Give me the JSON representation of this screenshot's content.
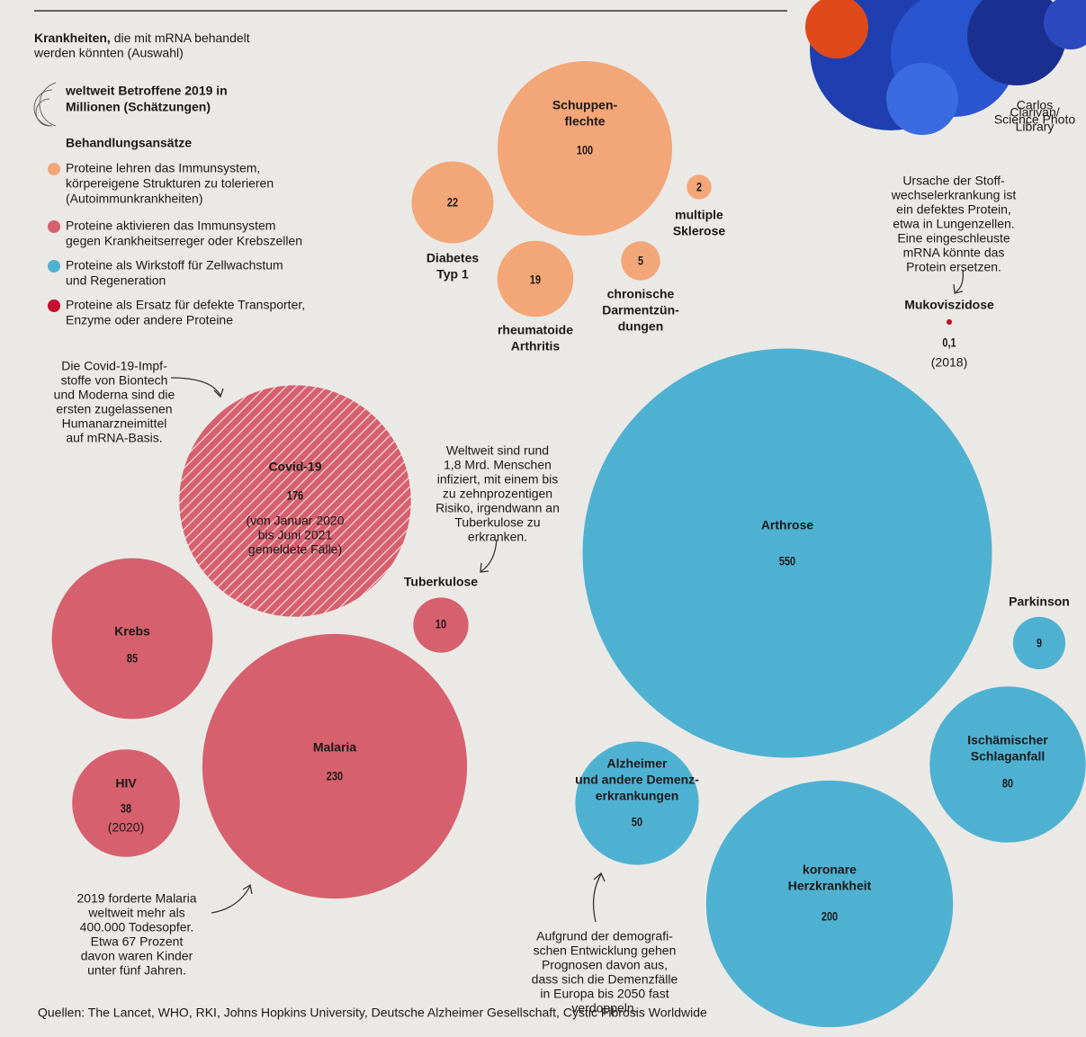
{
  "chart_data": {
    "type": "bubble",
    "title": "Krankheiten,",
    "subtitle": [
      "die mit mRNA behandelt",
      "werden könnten (Auswahl)"
    ],
    "size_legend": [
      "weltweit Betroffene 2019 in",
      "Millionen (Schätzungen)"
    ],
    "legend_title": "Behandlungsansätze",
    "series": [
      {
        "name": [
          "Proteine lehren das Immunsystem,",
          "körpereigene Strukturen zu tolerieren",
          "(Autoimmunkrankheiten)"
        ],
        "color": "#f3a678",
        "labels": [
          [
            "Schuppen-",
            "flechte"
          ],
          [
            "Diabetes",
            "Typ 1"
          ],
          [
            "multiple",
            "Sklerose"
          ],
          [
            "chronische",
            "Darmentzün-",
            "dungen"
          ],
          [
            "rheumatoide",
            "Arthritis"
          ]
        ],
        "values": [
          100,
          22,
          2,
          5,
          19
        ],
        "value_labels": [
          "100",
          "22",
          "2",
          "5",
          "19"
        ],
        "notes": [
          null,
          null,
          null,
          null,
          null
        ]
      },
      {
        "name": [
          "Proteine aktivieren das Immunsystem",
          "gegen Krankheitserreger oder Krebszellen"
        ],
        "color": "#d6606e",
        "labels": [
          [
            "Covid-19"
          ],
          [
            "Krebs"
          ],
          [
            "Malaria"
          ],
          [
            "HIV"
          ],
          [
            "Tuberkulose"
          ]
        ],
        "values": [
          176,
          85,
          230,
          38,
          10
        ],
        "value_labels": [
          "176",
          "85",
          "230",
          "38",
          "10"
        ],
        "notes": [
          [
            "(von Januar 2020",
            "bis Juni 2021",
            "gemeldete Fälle)"
          ],
          null,
          null,
          [
            "(2020)"
          ],
          null
        ]
      },
      {
        "name": [
          "Proteine als Wirkstoff für Zellwachstum",
          "und Regeneration"
        ],
        "color": "#4fb1d2",
        "labels": [
          [
            "Arthrose"
          ],
          [
            "Parkinson"
          ],
          [
            "Ischämischer",
            "Schlaganfall"
          ],
          [
            "Alzheimer",
            "und andere Demenz-",
            "erkrankungen"
          ],
          [
            "koronare",
            "Herzkrankheit"
          ]
        ],
        "values": [
          550,
          9,
          80,
          50,
          200
        ],
        "value_labels": [
          "550",
          "9",
          "80",
          "50",
          "200"
        ],
        "notes": [
          null,
          null,
          null,
          null,
          null
        ]
      },
      {
        "name": [
          "Proteine als Ersatz für defekte Transporter,",
          "Enzyme oder andere Proteine"
        ],
        "color": "#c4102e",
        "labels": [
          [
            "Mukoviszidose"
          ]
        ],
        "values": [
          0.1
        ],
        "value_labels": [
          "0,1"
        ],
        "notes": [
          [
            "(2018)"
          ]
        ]
      }
    ],
    "annotations": [
      [
        "Die Covid-19-Impf-",
        "stoffe von Biontech",
        "und Moderna sind die",
        "ersten zugelassenen",
        "Humanarzneimittel",
        "auf mRNA-Basis."
      ],
      [
        "Weltweit sind rund",
        "1,8 Mrd. Menschen",
        "infiziert, mit einem bis",
        "zu zehnprozentigen",
        "Risiko, irgendwann an",
        "Tuberkulose zu",
        "erkranken."
      ],
      [
        "Ursache der Stoff-",
        "wechselerkrankung ist",
        "ein defektes Protein,",
        "etwa in Lungenzellen.",
        "Eine eingeschleuste",
        "mRNA könnte das",
        "Protein ersetzen."
      ],
      [
        "2019 forderte Malaria",
        "weltweit mehr als",
        "400.000 Todesopfer.",
        "Etwa 67 Prozent",
        "davon waren Kinder",
        "unter fünf Jahren."
      ],
      [
        "Aufgrund der demografi-",
        "schen Entwicklung gehen",
        "Prognosen davon aus,",
        "dass sich die Demenzfälle",
        "in Europa bis 2050 fast",
        "verdoppeln."
      ]
    ],
    "source": "Quellen: The Lancet, WHO, RKI, Johns Hopkins University, Deutsche Alzheimer Gesellschaft, Cystic Fibrosis Worldwide",
    "credit": [
      "Carlos",
      "Clarivan/",
      "Science Photo",
      "Library"
    ]
  }
}
